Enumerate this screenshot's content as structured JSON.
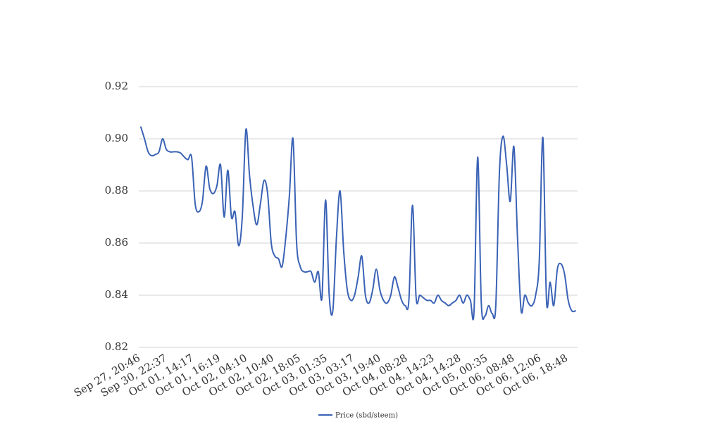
{
  "chart_data": {
    "type": "line",
    "title": "",
    "xlabel": "",
    "ylabel": "",
    "ylim": [
      0.82,
      0.92
    ],
    "yticks": [
      "0.82",
      "0.84",
      "0.86",
      "0.88",
      "0.90",
      "0.92"
    ],
    "ytick_values": [
      0.82,
      0.84,
      0.86,
      0.88,
      0.9,
      0.92
    ],
    "xtick_labels": [
      "Sep 27, 20:46",
      "Sep 30, 22:37",
      "Oct 01, 14:17",
      "Oct 01, 16:19",
      "Oct 02, 04:10",
      "Oct 02, 10:40",
      "Oct 02, 18:05",
      "Oct 03, 01:35",
      "Oct 03, 03:17",
      "Oct 03, 19:40",
      "Oct 04, 08:28",
      "Oct 04, 14:23",
      "Oct 04, 14:28",
      "Oct 05, 00:35",
      "Oct 06, 08:48",
      "Oct 06, 12:06",
      "Oct 06, 18:48"
    ],
    "grid": true,
    "legend_position": "bottom-center",
    "series": [
      {
        "name": "Price (sbd/steem)",
        "color": "#3a62b5",
        "values": [
          0.9045,
          0.9,
          0.895,
          0.8935,
          0.894,
          0.895,
          0.9,
          0.896,
          0.895,
          0.895,
          0.895,
          0.8945,
          0.893,
          0.892,
          0.893,
          0.875,
          0.872,
          0.876,
          0.8895,
          0.881,
          0.879,
          0.882,
          0.89,
          0.87,
          0.888,
          0.87,
          0.872,
          0.859,
          0.87,
          0.9035,
          0.886,
          0.874,
          0.867,
          0.875,
          0.884,
          0.879,
          0.86,
          0.855,
          0.854,
          0.851,
          0.862,
          0.878,
          0.9,
          0.86,
          0.851,
          0.849,
          0.849,
          0.849,
          0.845,
          0.849,
          0.839,
          0.8765,
          0.84,
          0.834,
          0.862,
          0.88,
          0.857,
          0.842,
          0.838,
          0.84,
          0.847,
          0.855,
          0.84,
          0.837,
          0.842,
          0.85,
          0.842,
          0.838,
          0.837,
          0.84,
          0.847,
          0.843,
          0.838,
          0.836,
          0.838,
          0.8745,
          0.839,
          0.84,
          0.839,
          0.838,
          0.838,
          0.837,
          0.84,
          0.838,
          0.837,
          0.836,
          0.837,
          0.838,
          0.84,
          0.837,
          0.84,
          0.838,
          0.834,
          0.893,
          0.837,
          0.832,
          0.836,
          0.833,
          0.836,
          0.887,
          0.901,
          0.89,
          0.876,
          0.897,
          0.862,
          0.834,
          0.84,
          0.837,
          0.836,
          0.84,
          0.853,
          0.9005,
          0.838,
          0.845,
          0.836,
          0.85,
          0.852,
          0.848,
          0.838,
          0.834,
          0.834
        ]
      }
    ]
  }
}
